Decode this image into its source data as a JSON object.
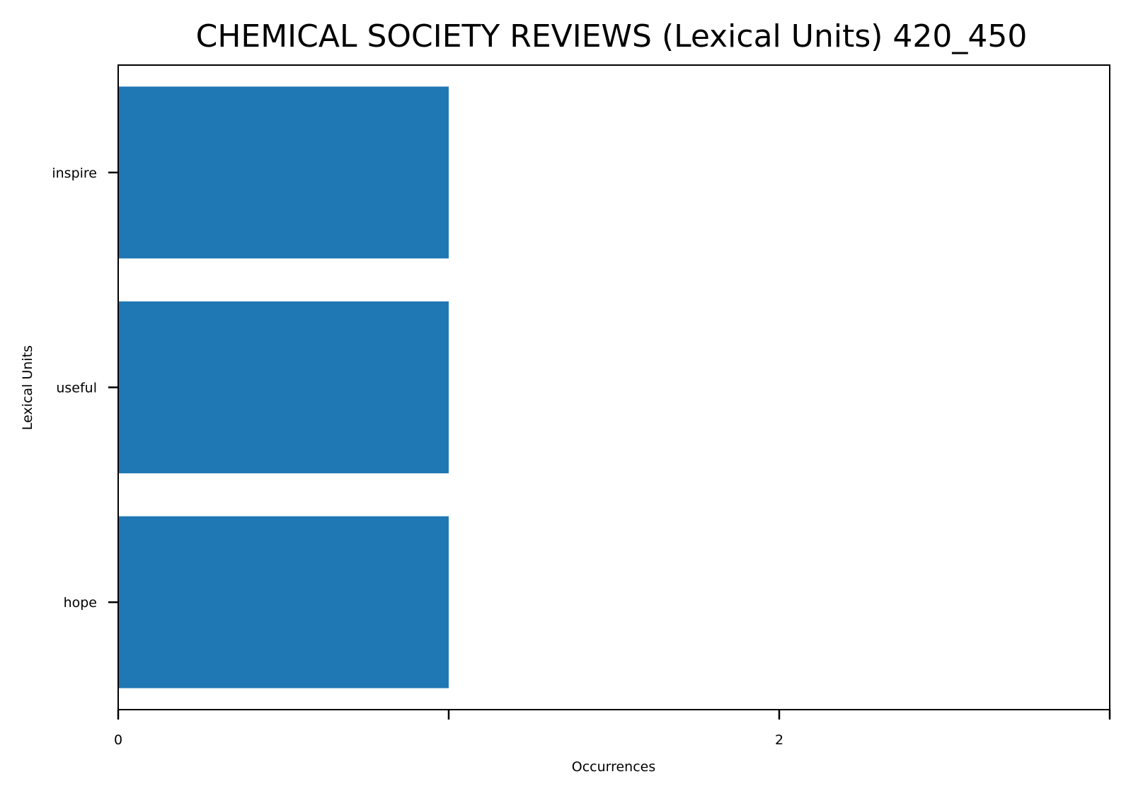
{
  "chart_data": {
    "type": "bar",
    "orientation": "horizontal",
    "title": "CHEMICAL SOCIETY REVIEWS (Lexical Units) 420_450",
    "xlabel": "Occurrences",
    "ylabel": "Lexical Units",
    "categories": [
      "inspire",
      "useful",
      "hope"
    ],
    "values": [
      1,
      1,
      1
    ],
    "xlim": [
      0,
      3
    ],
    "x_ticks": [
      0,
      1,
      2,
      3
    ],
    "x_tick_labels": [
      "0",
      "",
      "2",
      ""
    ],
    "grid": false,
    "legend": "none",
    "bar_color": "#1f77b4"
  }
}
